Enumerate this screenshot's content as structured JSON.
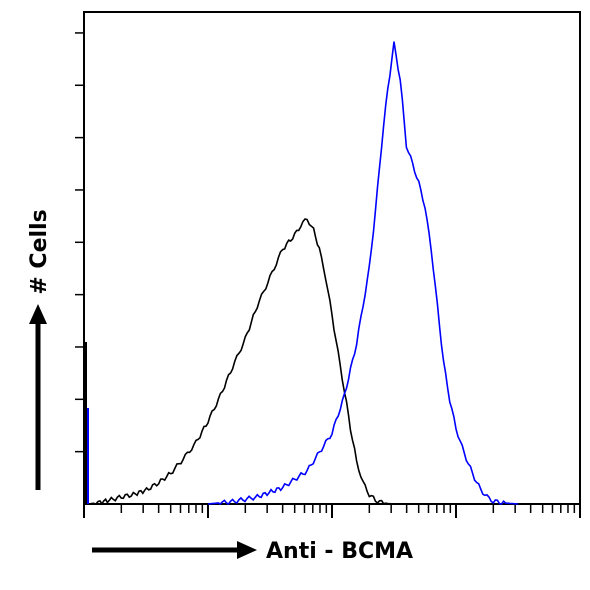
{
  "chart_data": {
    "type": "line",
    "title": "",
    "xlabel": "Anti - BCMA",
    "ylabel": "# Cells",
    "x_scale": "log",
    "xlim": [
      1,
      10000
    ],
    "ylim": [
      0,
      1000
    ],
    "grid": false,
    "legend": "none",
    "series": [
      {
        "color": "#000000",
        "x": [
          1.1,
          1.3,
          1.6,
          2,
          2.5,
          3.2,
          4,
          5,
          6.3,
          8,
          10,
          12.6,
          15.8,
          20,
          25,
          31.6,
          40,
          50,
          56,
          63,
          71,
          79,
          89,
          100,
          112,
          126,
          141,
          158,
          178,
          200,
          224,
          251,
          282,
          316
        ],
        "y": [
          0,
          3,
          8,
          15,
          20,
          30,
          45,
          65,
          95,
          130,
          175,
          230,
          290,
          350,
          420,
          480,
          540,
          570,
          590,
          605,
          580,
          540,
          480,
          400,
          320,
          240,
          160,
          90,
          45,
          20,
          8,
          3,
          1,
          0
        ]
      },
      {
        "color": "#0000ff",
        "x": [
          10,
          15.8,
          25,
          40,
          63,
          100,
          126,
          158,
          200,
          224,
          251,
          282,
          316,
          355,
          398,
          447,
          501,
          562,
          631,
          708,
          794,
          891,
          1000,
          1122,
          1259,
          1413,
          1585,
          1778,
          2000,
          2512,
          3162
        ],
        "y": [
          0,
          5,
          15,
          35,
          70,
          150,
          230,
          340,
          500,
          620,
          760,
          880,
          975,
          900,
          760,
          720,
          680,
          630,
          540,
          420,
          300,
          220,
          160,
          120,
          85,
          55,
          30,
          15,
          6,
          2,
          0
        ]
      }
    ]
  }
}
